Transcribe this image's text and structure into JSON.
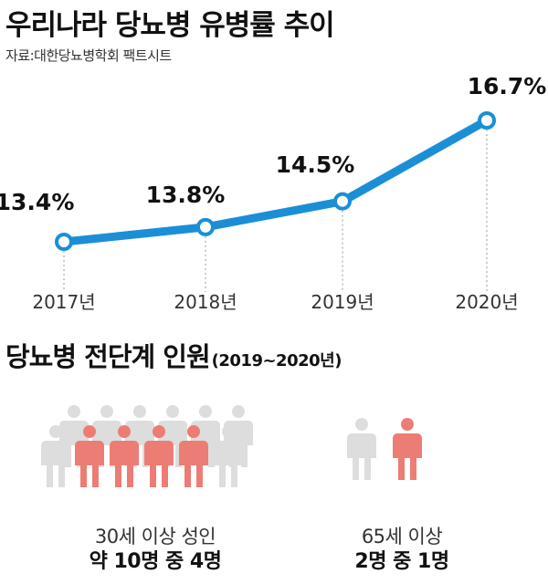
{
  "title": "우리나라 당뇨병 유병률 추이",
  "source": "자료:대한당뇨병학회 팩트시트",
  "chart_data": {
    "type": "line",
    "categories": [
      "2017년",
      "2018년",
      "2019년",
      "2020년"
    ],
    "values": [
      13.4,
      13.8,
      14.5,
      16.7
    ],
    "value_labels": [
      "13.4%",
      "13.8%",
      "14.5%",
      "16.7%"
    ],
    "unit": "%",
    "line_color": "#1a8fd6",
    "marker_fill": "#ffffff",
    "grid": false,
    "legend": "none"
  },
  "prediabetes": {
    "title": "당뇨병 전단계 인원",
    "subtitle": "(2019~2020년)",
    "groups": [
      {
        "line1": "30세 이상 성인",
        "line2": "약 10명 중 4명",
        "total": 10,
        "highlighted": 4
      },
      {
        "line1": "65세 이상",
        "line2": "2명 중 1명",
        "total": 2,
        "highlighted": 1
      }
    ],
    "colors": {
      "highlight": "#ec7d74",
      "base": "#dddddd"
    }
  }
}
